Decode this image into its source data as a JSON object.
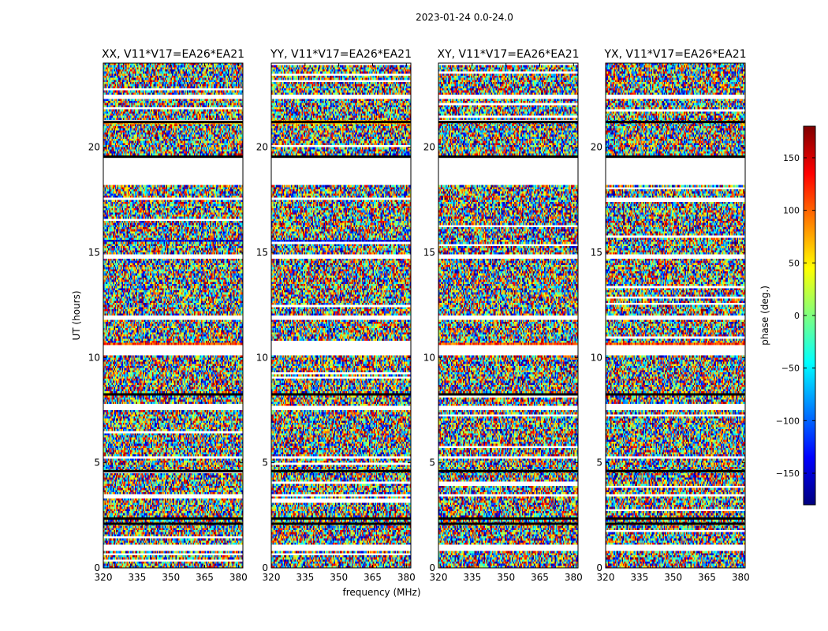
{
  "chart_data": {
    "type": "heatmap",
    "suptitle": "2023-01-24 0.0-24.0",
    "xlabel": "frequency (MHz)",
    "ylabel": "UT (hours)",
    "xlim": [
      320,
      382
    ],
    "ylim": [
      0,
      24
    ],
    "x_ticks": [
      320,
      335,
      350,
      365,
      380
    ],
    "x_tick_labels": [
      "320",
      "335",
      "350",
      "365",
      "380"
    ],
    "y_ticks": [
      0,
      5,
      10,
      15,
      20
    ],
    "y_tick_labels": [
      "0",
      "5",
      "10",
      "15",
      "20"
    ],
    "panels": [
      {
        "title": "XX, V11*V17=EA26*EA21",
        "polarization": "XX"
      },
      {
        "title": "YY, V11*V17=EA26*EA21",
        "polarization": "YY"
      },
      {
        "title": "XY, V11*V17=EA26*EA21",
        "polarization": "XY"
      },
      {
        "title": "YX, V11*V17=EA26*EA21",
        "polarization": "YX"
      }
    ],
    "blank_ut_ranges": [
      [
        0.85,
        1.15
      ],
      [
        18.2,
        19.45
      ],
      [
        10.1,
        10.6
      ],
      [
        3.35,
        3.5
      ],
      [
        5.2,
        5.3
      ],
      [
        7.55,
        7.65
      ],
      [
        11.85,
        11.95
      ],
      [
        14.7,
        14.9
      ],
      [
        22.35,
        22.45
      ]
    ],
    "flag_line_ut": [
      2.1,
      2.35,
      19.55,
      21.2,
      8.25,
      4.6
    ],
    "colorbar": {
      "label": "phase (deg.)",
      "vmin": -180,
      "vmax": 180,
      "ticks": [
        150,
        100,
        50,
        0,
        -50,
        -100,
        -150
      ],
      "tick_labels": [
        "150",
        "100",
        "50",
        "0",
        "−50",
        "−100",
        "−150"
      ],
      "colormap": "jet",
      "colors": [
        "#00007f",
        "#0000ff",
        "#007fff",
        "#00ffff",
        "#7fff7f",
        "#ffff00",
        "#ff7f00",
        "#ff0000",
        "#7f0000"
      ]
    }
  }
}
